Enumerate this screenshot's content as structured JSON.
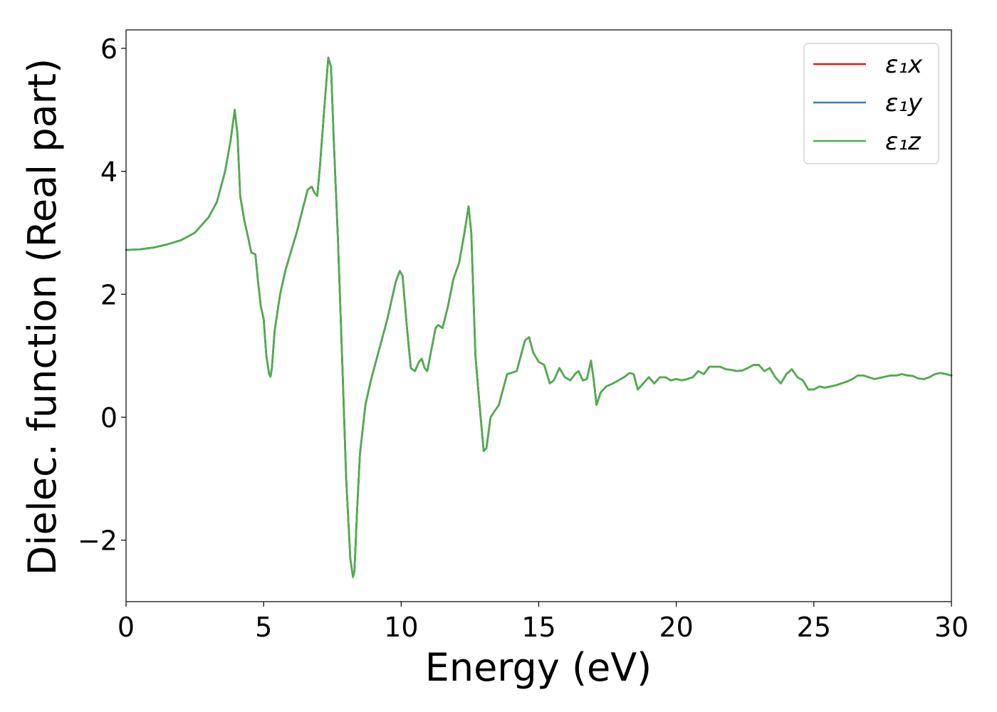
{
  "chart_data": {
    "type": "line",
    "xlabel": "Energy (eV)",
    "ylabel": "Dielec. function (Real part)",
    "xlim": [
      0,
      30
    ],
    "ylim": [
      -3.0,
      6.3
    ],
    "xticks": [
      0,
      5,
      10,
      15,
      20,
      25,
      30
    ],
    "yticks": [
      -2,
      0,
      2,
      4,
      6
    ],
    "xtick_labels": [
      "0",
      "5",
      "10",
      "15",
      "20",
      "25",
      "30"
    ],
    "ytick_labels": [
      "−2",
      "0",
      "2",
      "4",
      "6"
    ],
    "grid": false,
    "legend_position": "top-right",
    "series": [
      {
        "name": "ε1x",
        "legend_label": "ε₁x",
        "color": "#e41a1c",
        "x": [
          0,
          0.5,
          1,
          1.5,
          2,
          2.5,
          3,
          3.3,
          3.6,
          3.8,
          3.95,
          4.05,
          4.15,
          4.3,
          4.45,
          4.55,
          4.7,
          4.8,
          4.9,
          5.0,
          5.1,
          5.2,
          5.25,
          5.3,
          5.4,
          5.6,
          5.8,
          6.0,
          6.2,
          6.4,
          6.6,
          6.75,
          6.85,
          6.95,
          7.05,
          7.2,
          7.35,
          7.45,
          7.55,
          7.7,
          7.85,
          8.0,
          8.15,
          8.25,
          8.3,
          8.4,
          8.5,
          8.7,
          8.9,
          9.2,
          9.5,
          9.8,
          9.95,
          10.05,
          10.2,
          10.35,
          10.5,
          10.65,
          10.75,
          10.85,
          10.95,
          11.1,
          11.25,
          11.35,
          11.5,
          11.7,
          11.9,
          12.1,
          12.3,
          12.45,
          12.55,
          12.7,
          12.85,
          13.0,
          13.1,
          13.25,
          13.4,
          13.55,
          13.7,
          13.85,
          14.0,
          14.2,
          14.35,
          14.5,
          14.65,
          14.8,
          15.0,
          15.2,
          15.4,
          15.55,
          15.75,
          15.95,
          16.15,
          16.35,
          16.45,
          16.6,
          16.75,
          16.9,
          17.0,
          17.1,
          17.25,
          17.45,
          17.7,
          17.9,
          18.1,
          18.3,
          18.45,
          18.6,
          18.8,
          19.0,
          19.2,
          19.4,
          19.6,
          19.8,
          20.0,
          20.2,
          20.4,
          20.6,
          20.8,
          21.0,
          21.2,
          21.4,
          21.6,
          21.8,
          22.0,
          22.2,
          22.4,
          22.6,
          22.8,
          23.0,
          23.2,
          23.4,
          23.6,
          23.8,
          24.0,
          24.2,
          24.4,
          24.6,
          24.8,
          25.0,
          25.2,
          25.4,
          25.6,
          25.8,
          26.0,
          26.2,
          26.4,
          26.6,
          26.8,
          27.0,
          27.2,
          27.4,
          27.6,
          27.8,
          28.0,
          28.2,
          28.4,
          28.6,
          28.8,
          29.0,
          29.2,
          29.4,
          29.6,
          29.8,
          30.0
        ],
        "y": [
          2.72,
          2.73,
          2.76,
          2.81,
          2.88,
          3.0,
          3.25,
          3.5,
          4.0,
          4.5,
          5.0,
          4.6,
          3.6,
          3.2,
          2.9,
          2.68,
          2.65,
          2.2,
          1.8,
          1.6,
          1.0,
          0.7,
          0.66,
          0.8,
          1.4,
          2.0,
          2.4,
          2.7,
          3.0,
          3.35,
          3.7,
          3.75,
          3.65,
          3.6,
          4.1,
          5.0,
          5.85,
          5.7,
          4.5,
          2.9,
          1.0,
          -1.0,
          -2.3,
          -2.6,
          -2.5,
          -1.5,
          -0.6,
          0.2,
          0.6,
          1.1,
          1.6,
          2.2,
          2.38,
          2.3,
          1.5,
          0.8,
          0.75,
          0.9,
          0.95,
          0.8,
          0.75,
          1.1,
          1.45,
          1.5,
          1.45,
          1.8,
          2.25,
          2.5,
          3.0,
          3.43,
          3.0,
          1.0,
          0.2,
          -0.55,
          -0.5,
          0.0,
          0.1,
          0.2,
          0.45,
          0.7,
          0.72,
          0.75,
          1.0,
          1.25,
          1.3,
          1.05,
          0.9,
          0.85,
          0.55,
          0.6,
          0.8,
          0.65,
          0.6,
          0.72,
          0.75,
          0.6,
          0.62,
          0.92,
          0.6,
          0.2,
          0.4,
          0.5,
          0.55,
          0.6,
          0.65,
          0.72,
          0.7,
          0.45,
          0.55,
          0.65,
          0.55,
          0.65,
          0.65,
          0.6,
          0.62,
          0.6,
          0.62,
          0.65,
          0.75,
          0.7,
          0.82,
          0.82,
          0.82,
          0.78,
          0.77,
          0.75,
          0.76,
          0.8,
          0.85,
          0.85,
          0.75,
          0.8,
          0.65,
          0.55,
          0.7,
          0.78,
          0.65,
          0.6,
          0.45,
          0.45,
          0.5,
          0.48,
          0.5,
          0.52,
          0.55,
          0.58,
          0.62,
          0.68,
          0.68,
          0.65,
          0.62,
          0.64,
          0.66,
          0.68,
          0.68,
          0.7,
          0.68,
          0.67,
          0.63,
          0.62,
          0.65,
          0.7,
          0.72,
          0.7,
          0.68
        ]
      },
      {
        "name": "ε1y",
        "legend_label": "ε₁y",
        "color": "#377eb8",
        "same_as": 0
      },
      {
        "name": "ε1z",
        "legend_label": "ε₁z",
        "color": "#4daf4a",
        "same_as": 0
      }
    ]
  }
}
